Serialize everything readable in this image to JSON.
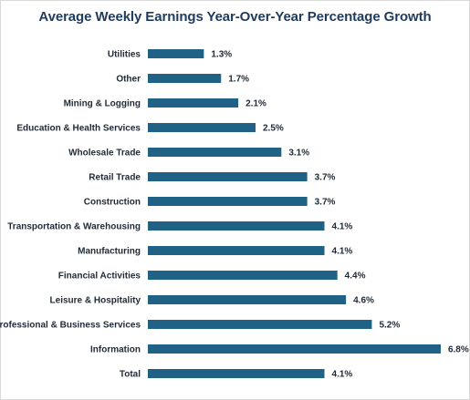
{
  "chart_data": {
    "type": "bar",
    "orientation": "horizontal",
    "title": "Average Weekly Earnings Year-Over-Year Percentage Growth",
    "xlabel": "",
    "ylabel": "",
    "categories": [
      "Utilities",
      "Other",
      "Mining & Logging",
      "Education & Health Services",
      "Wholesale Trade",
      "Retail Trade",
      "Construction",
      "Transportation & Warehousing",
      "Manufacturing",
      "Financial Activities",
      "Leisure & Hospitality",
      "Professional & Business Services",
      "Information",
      "Total"
    ],
    "values": [
      1.3,
      1.7,
      2.1,
      2.5,
      3.1,
      3.7,
      3.7,
      4.1,
      4.1,
      4.4,
      4.6,
      5.2,
      6.8,
      4.1
    ],
    "value_labels": [
      "1.3%",
      "1.7%",
      "2.1%",
      "2.5%",
      "3.1%",
      "3.7%",
      "3.7%",
      "4.1%",
      "4.1%",
      "4.4%",
      "4.6%",
      "5.2%",
      "6.8%",
      "4.1%"
    ],
    "xlim": [
      0,
      8.2
    ],
    "grid": false,
    "legend": "none",
    "bar_color": "#1f6285"
  }
}
